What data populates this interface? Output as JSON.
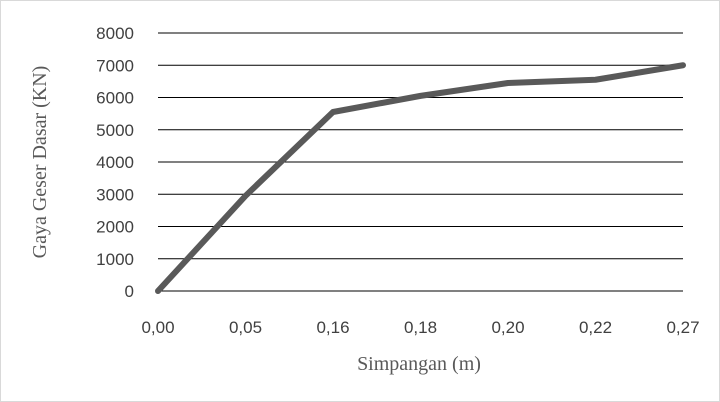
{
  "chart_data": {
    "type": "line",
    "title": "",
    "xlabel": "Simpangan (m)",
    "ylabel": "Gaya Geser Dasar (KN)",
    "categories": [
      "0,00",
      "0,05",
      "0,16",
      "0,18",
      "0,20",
      "0,22",
      "0,27"
    ],
    "series": [
      {
        "values": [
          0,
          2950,
          5550,
          6050,
          6450,
          6550,
          7000
        ]
      }
    ],
    "ylim": [
      0,
      8000
    ],
    "yticks": [
      "0",
      "1000",
      "2000",
      "3000",
      "4000",
      "5000",
      "6000",
      "7000",
      "8000"
    ],
    "grid": true,
    "legend": "none",
    "line_color": "#595959",
    "grid_color": "#000000"
  }
}
